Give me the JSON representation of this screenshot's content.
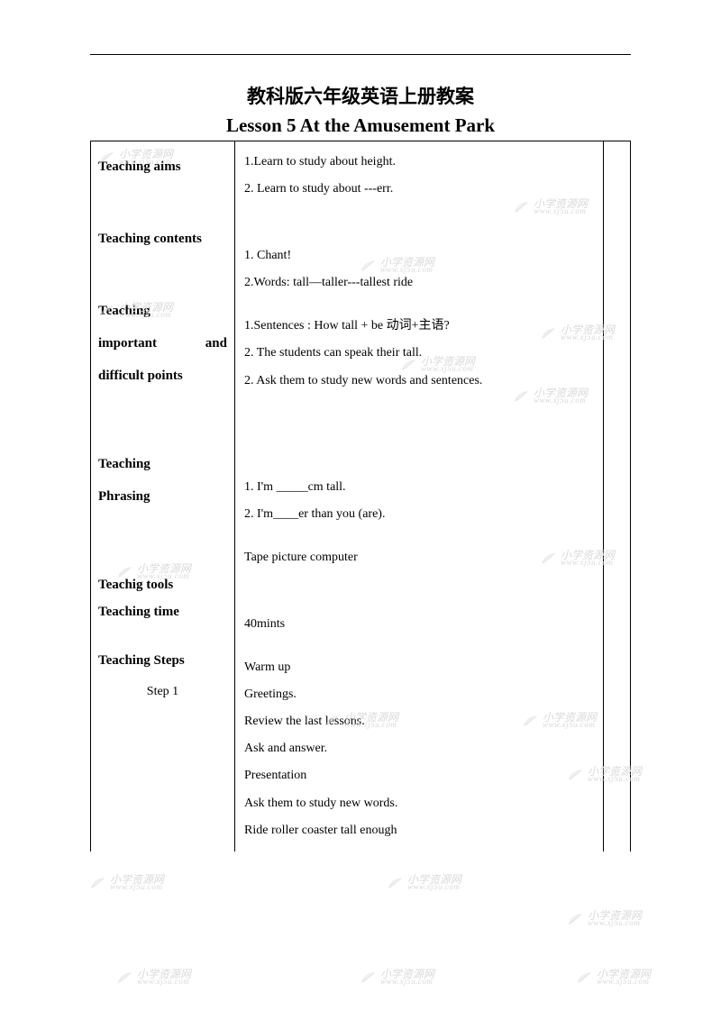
{
  "title_cn": "教科版六年级英语上册教案",
  "title_en": "Lesson 5 At the Amusement Park",
  "watermark": {
    "cn": "小学资源网",
    "url": "www.xj5u.com"
  },
  "sections": {
    "aims": {
      "label": "Teaching aims",
      "lines": [
        "1.Learn to study about height.",
        "2. Learn to study about ---err."
      ]
    },
    "contents": {
      "label": "Teaching contents",
      "lines": [
        "1. Chant!",
        "2.Words: tall—taller---tallest    ride"
      ]
    },
    "points": {
      "label1": "Teaching",
      "label2": "important and",
      "label3": "difficult points",
      "lines": [
        "1.Sentences : How tall + be  动词+主语?",
        "2. The students can speak their tall.",
        "2. Ask them to study new words and sentences."
      ]
    },
    "phrasing": {
      "label1": "Teaching",
      "label2": "Phrasing",
      "lines": [
        "1. I'm _____cm tall.",
        "2. I'm____er than you (are)."
      ]
    },
    "tools": {
      "label": "Teachig tools",
      "line": "Tape    picture    computer"
    },
    "time": {
      "label": "Teaching time",
      "line": "40mints"
    },
    "steps": {
      "label": "Teaching Steps",
      "sub": "Step 1",
      "lines": [
        "Warm up",
        "Greetings.",
        "Review the last lessons.",
        "Ask and answer.",
        "Presentation",
        "Ask them to study new words.",
        "Ride    roller coaster    tall enough"
      ]
    }
  }
}
